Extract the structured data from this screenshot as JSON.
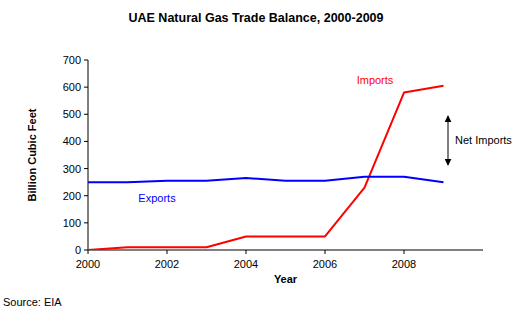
{
  "chart_data": {
    "type": "line",
    "title": "UAE Natural Gas Trade Balance, 2000-2009",
    "x_label": "Year",
    "y_label": "Billion Cubic Feet",
    "source": "Source: EIA",
    "annotations": [
      "Net Imports"
    ],
    "x": [
      2000,
      2001,
      2002,
      2003,
      2004,
      2005,
      2006,
      2007,
      2008,
      2009
    ],
    "series": [
      {
        "name": "Imports",
        "color": "#ff0000",
        "values": [
          0,
          10,
          10,
          10,
          50,
          50,
          50,
          230,
          580,
          605
        ]
      },
      {
        "name": "Exports",
        "color": "#0000ff",
        "values": [
          250,
          250,
          255,
          255,
          265,
          255,
          255,
          270,
          270,
          250
        ]
      }
    ],
    "xlim": [
      2000,
      2010
    ],
    "xticks": [
      2000,
      2002,
      2004,
      2006,
      2008
    ],
    "ylim": [
      0,
      700
    ],
    "yticks": [
      0,
      100,
      200,
      300,
      400,
      500,
      600,
      700
    ],
    "grid": false
  }
}
